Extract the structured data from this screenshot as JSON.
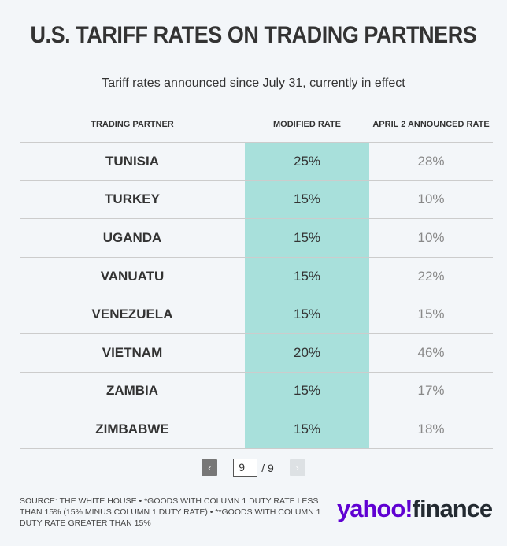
{
  "header": {
    "title": "U.S. TARIFF RATES ON TRADING PARTNERS",
    "subtitle": "Tariff rates announced since July 31, currently in effect"
  },
  "chart_data": {
    "type": "table",
    "columns": [
      "TRADING PARTNER",
      "MODIFIED RATE",
      "APRIL 2 ANNOUNCED RATE"
    ],
    "rows": [
      {
        "partner": "TUNISIA",
        "modified": "25%",
        "april": "28%"
      },
      {
        "partner": "TURKEY",
        "modified": "15%",
        "april": "10%"
      },
      {
        "partner": "UGANDA",
        "modified": "15%",
        "april": "10%"
      },
      {
        "partner": "VANUATU",
        "modified": "15%",
        "april": "22%"
      },
      {
        "partner": "VENEZUELA",
        "modified": "15%",
        "april": "15%"
      },
      {
        "partner": "VIETNAM",
        "modified": "20%",
        "april": "46%"
      },
      {
        "partner": "ZAMBIA",
        "modified": "15%",
        "april": "17%"
      },
      {
        "partner": "ZIMBABWE",
        "modified": "15%",
        "april": "18%"
      }
    ]
  },
  "pagination": {
    "prev": "‹",
    "next": "›",
    "current": "9",
    "total": "/ 9"
  },
  "footer": {
    "source": "SOURCE: THE WHITE HOUSE • *GOODS WITH COLUMN 1 DUTY RATE LESS THAN 15% (15% MINUS COLUMN 1 DUTY RATE) • **GOODS WITH COLUMN 1 DUTY RATE GREATER THAN 15%"
  },
  "logo": {
    "part1": "yahoo!",
    "part2": "finance"
  },
  "colors": {
    "highlight": "#a8e0db",
    "brand": "#6001d2"
  }
}
